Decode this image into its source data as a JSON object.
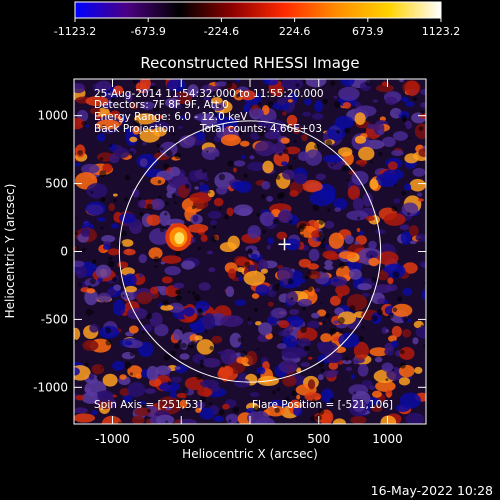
{
  "colorbar": {
    "ticks": [
      "-1123.2",
      "-673.9",
      "-224.6",
      "224.6",
      "673.9",
      "1123.2"
    ],
    "stops": [
      "#0000ff",
      "#4b0082",
      "#000000",
      "#8b0000",
      "#ff2a00",
      "#ff8c00",
      "#ffd200",
      "#ffffff"
    ]
  },
  "title": "Reconstructed RHESSI Image",
  "annotations": {
    "time_range": "25-Aug-2014 11:54:32.000 to 11:55:20.000",
    "detectors": "Detectors: 7F 8F 9F, Att 0",
    "energy": "Energy Range: 6.0 - 12.0 keV",
    "method": "Back Projection",
    "counts": "Total counts: 4.66E+03",
    "spin_axis": "Spin Axis = [251,53]",
    "flare_position": "Flare Position = [-521,106]"
  },
  "axes": {
    "xlabel": "Heliocentric X (arcsec)",
    "ylabel": "Heliocentric Y (arcsec)",
    "xticks": [
      "-1000",
      "-500",
      "0",
      "500",
      "1000"
    ],
    "yticks": [
      "1000",
      "500",
      "0",
      "-500",
      "-1000"
    ],
    "xtick_values": [
      -1000,
      -500,
      0,
      500,
      1000
    ],
    "ytick_values": [
      1000,
      500,
      0,
      -500,
      -1000
    ],
    "xlim": [
      -1280,
      1280
    ],
    "ylim": [
      -1270,
      1270
    ]
  },
  "solar_disk": {
    "radius_arcsec": 950
  },
  "markers": {
    "spin_axis": [
      251,
      53
    ],
    "flare_position": [
      -521,
      106
    ]
  },
  "footer": {
    "date": "16-May-2022 10:28"
  }
}
